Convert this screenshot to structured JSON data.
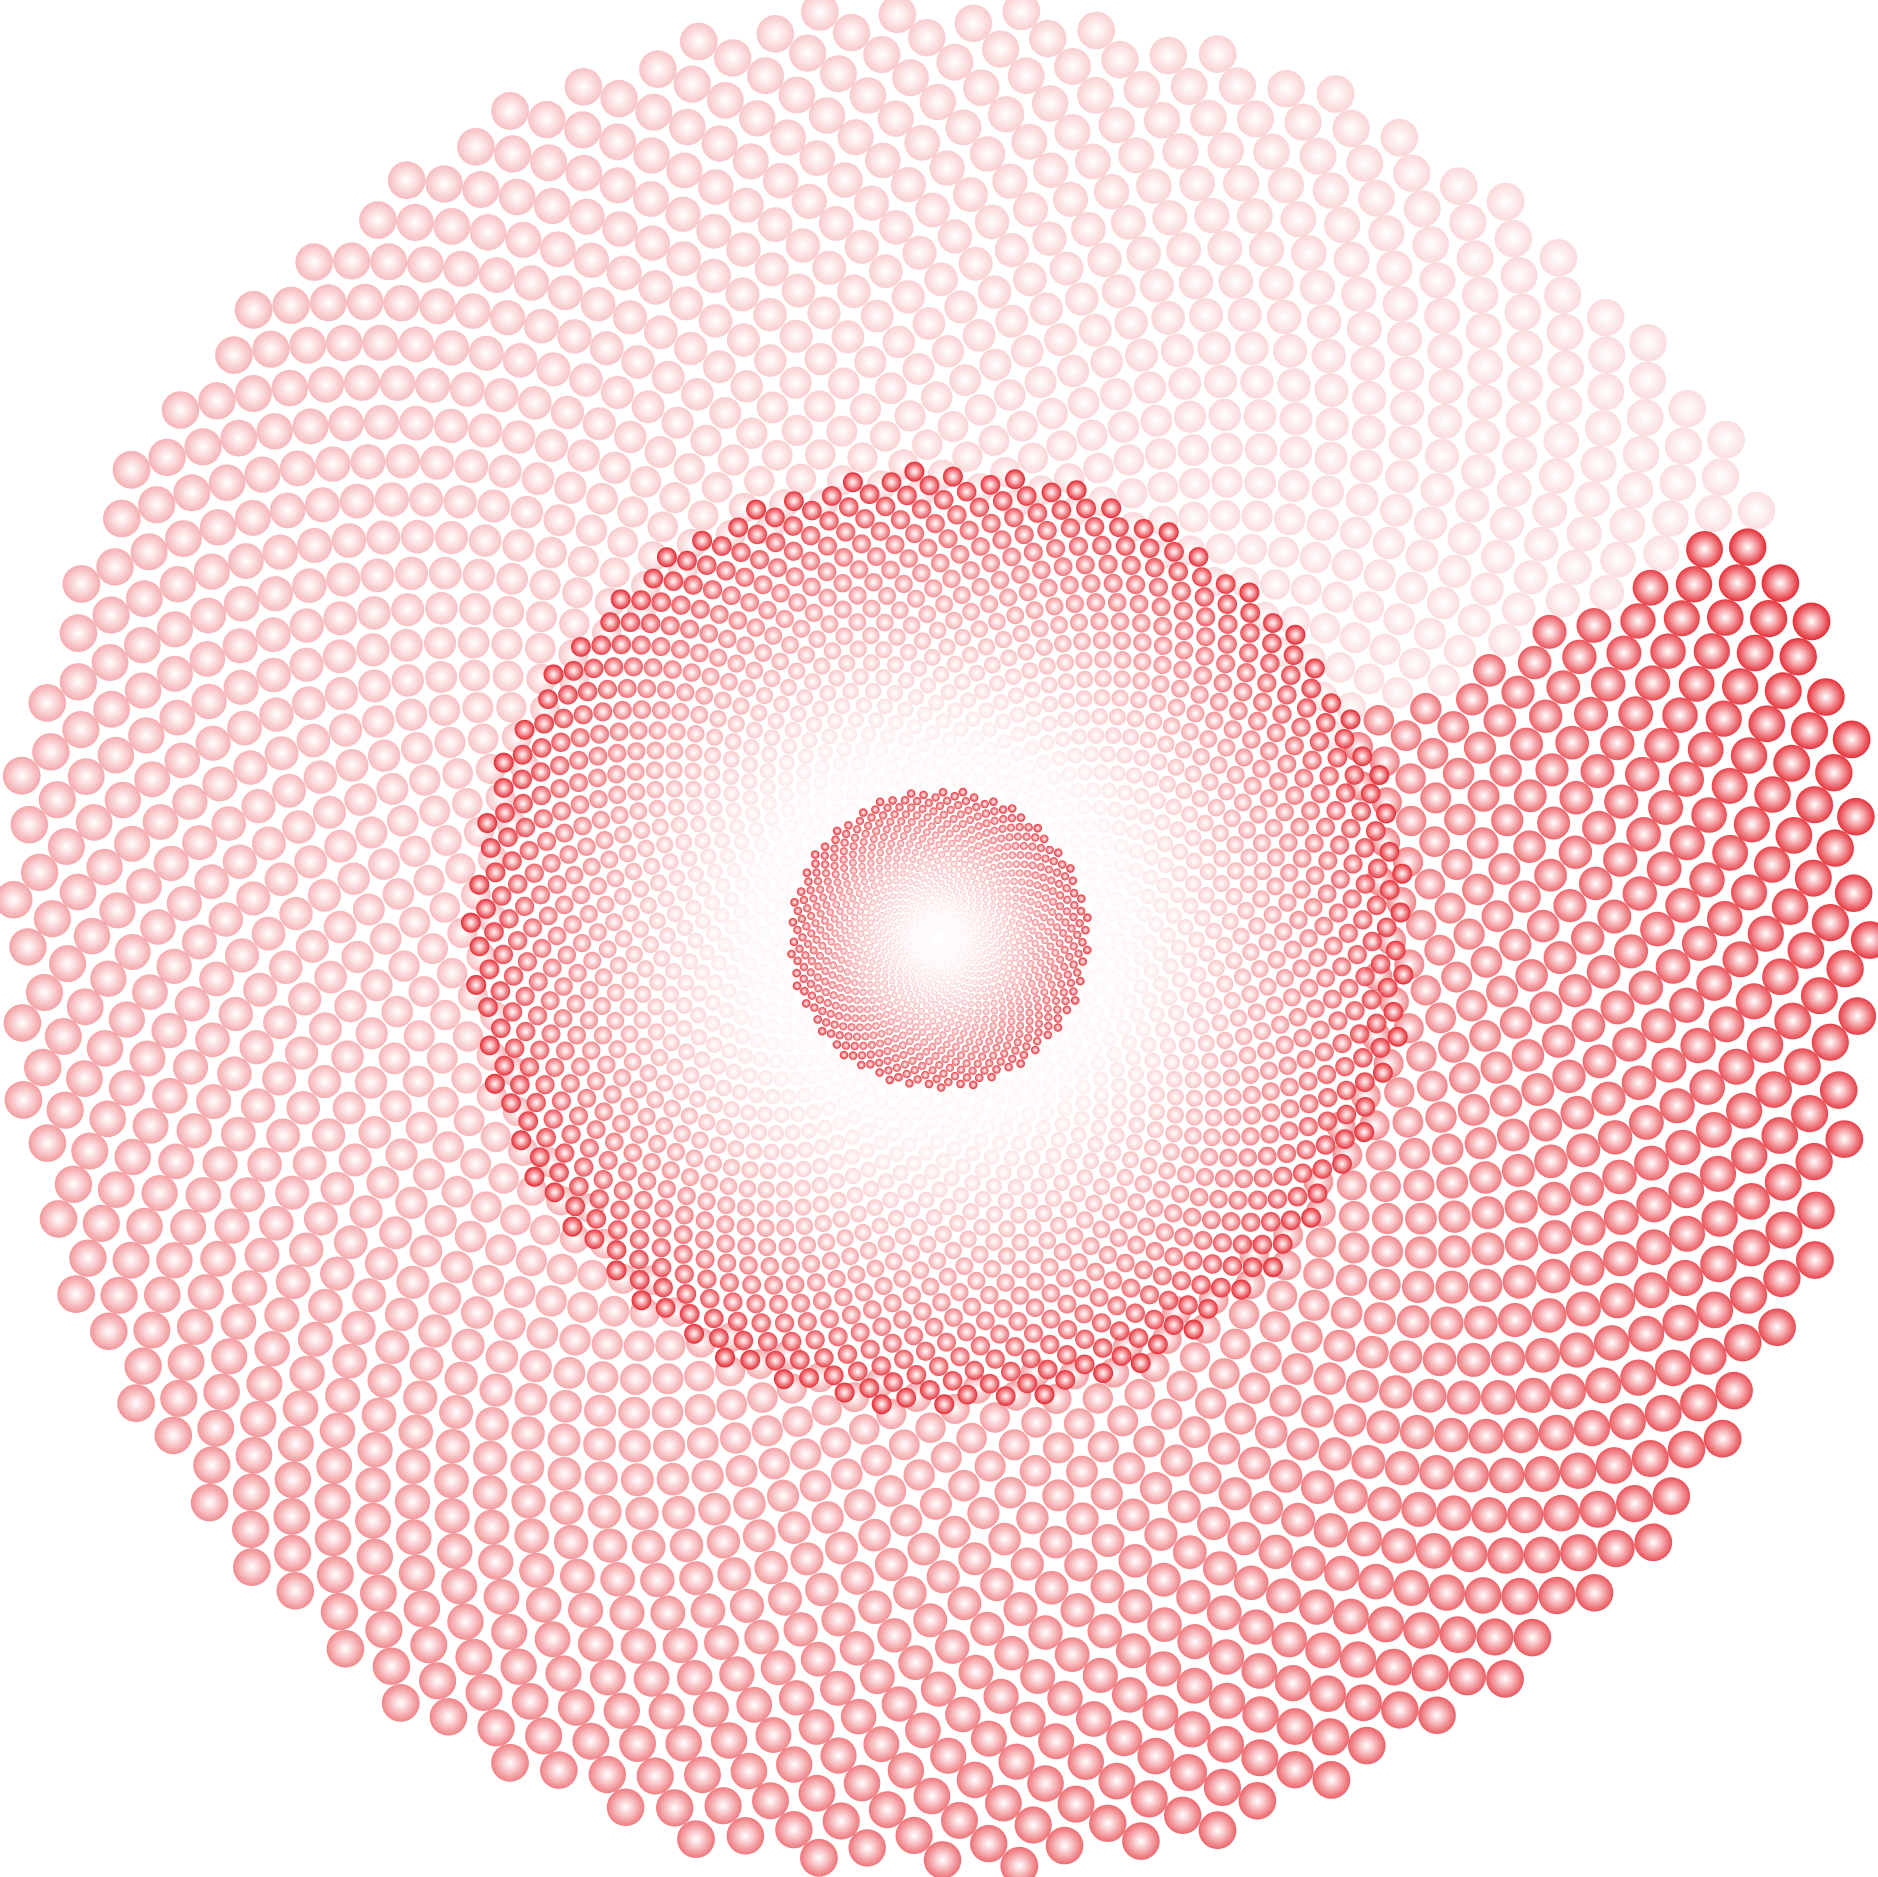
{
  "artwork": {
    "type": "phyllotaxis-spiral-of-spheres",
    "colors": {
      "background": "#ffffff",
      "sphere_edge": "#e3232c",
      "sphere_highlight": "#ffffff"
    },
    "layers": [
      "inner-spiral",
      "middle-spiral",
      "outer-spiral"
    ]
  }
}
